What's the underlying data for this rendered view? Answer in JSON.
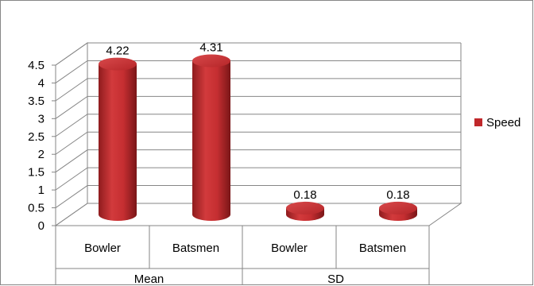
{
  "chart_data": {
    "type": "bar",
    "style": "3d-cylinder",
    "groups": [
      {
        "label": "Mean",
        "categories": [
          "Bowler",
          "Batsmen"
        ]
      },
      {
        "label": "SD",
        "categories": [
          "Bowler",
          "Batsmen"
        ]
      }
    ],
    "categories": [
      "Bowler",
      "Batsmen",
      "Bowler",
      "Batsmen"
    ],
    "series": [
      {
        "name": "Speed",
        "values": [
          4.22,
          4.31,
          0.18,
          0.18
        ],
        "color": "#C0282B"
      }
    ],
    "data_labels": [
      "4.22",
      "4.31",
      "0.18",
      "0.18"
    ],
    "ylim": [
      0,
      4.5
    ],
    "yticks": [
      "0",
      "0.5",
      "1",
      "1.5",
      "2",
      "2.5",
      "3",
      "3.5",
      "4",
      "4.5"
    ],
    "grid": true,
    "legend": "right"
  }
}
